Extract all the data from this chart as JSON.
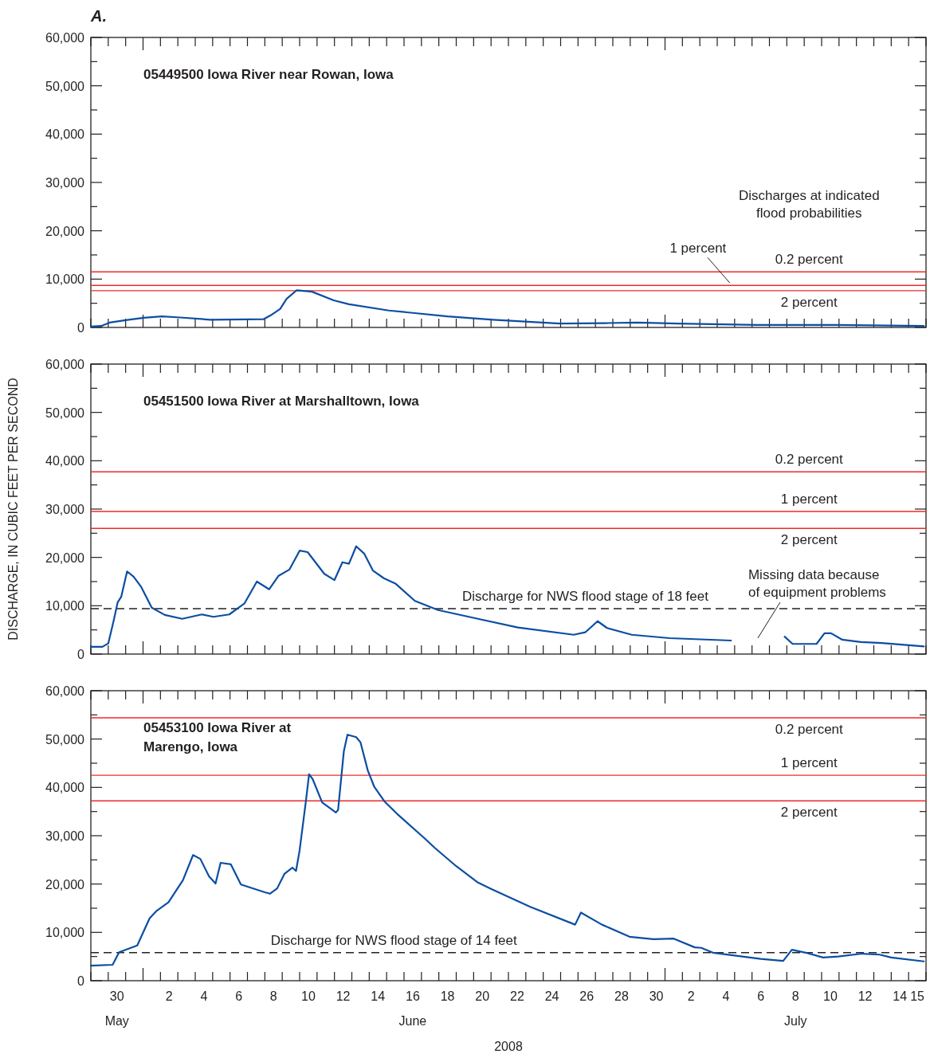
{
  "chart_data": [
    {
      "type": "line",
      "title": "05449500 Iowa River near Rowan, Iowa",
      "tick_labels": "y",
      "xlim": [
        "2008-05-29",
        "2008-07-16"
      ],
      "xticks": [
        {
          "value": "2008-05-29",
          "label": null
        },
        {
          "value": "2008-05-30",
          "label": null
        },
        {
          "value": "2008-05-31",
          "label": null
        },
        {
          "value": "2008-06-01",
          "label": null
        },
        {
          "value": "2008-06-02",
          "label": null
        },
        {
          "value": "2008-06-03",
          "label": null
        },
        {
          "value": "2008-06-04",
          "label": null
        },
        {
          "value": "2008-06-05",
          "label": null
        },
        {
          "value": "2008-06-06",
          "label": null
        },
        {
          "value": "2008-06-07",
          "label": null
        },
        {
          "value": "2008-06-08",
          "label": null
        },
        {
          "value": "2008-06-09",
          "label": null
        },
        {
          "value": "2008-06-10",
          "label": null
        },
        {
          "value": "2008-06-11",
          "label": null
        },
        {
          "value": "2008-06-12",
          "label": null
        },
        {
          "value": "2008-06-13",
          "label": null
        },
        {
          "value": "2008-06-14",
          "label": null
        },
        {
          "value": "2008-06-15",
          "label": null
        },
        {
          "value": "2008-06-16",
          "label": null
        },
        {
          "value": "2008-06-17",
          "label": null
        },
        {
          "value": "2008-06-18",
          "label": null
        },
        {
          "value": "2008-06-19",
          "label": null
        },
        {
          "value": "2008-06-20",
          "label": null
        },
        {
          "value": "2008-06-21",
          "label": null
        },
        {
          "value": "2008-06-22",
          "label": null
        },
        {
          "value": "2008-06-23",
          "label": null
        },
        {
          "value": "2008-06-24",
          "label": null
        },
        {
          "value": "2008-06-25",
          "label": null
        },
        {
          "value": "2008-06-26",
          "label": null
        },
        {
          "value": "2008-06-27",
          "label": null
        },
        {
          "value": "2008-06-28",
          "label": null
        },
        {
          "value": "2008-06-29",
          "label": null
        },
        {
          "value": "2008-06-30",
          "label": null
        },
        {
          "value": "2008-07-01",
          "label": null
        },
        {
          "value": "2008-07-02",
          "label": null
        },
        {
          "value": "2008-07-03",
          "label": null
        },
        {
          "value": "2008-07-04",
          "label": null
        },
        {
          "value": "2008-07-05",
          "label": null
        },
        {
          "value": "2008-07-06",
          "label": null
        },
        {
          "value": "2008-07-07",
          "label": null
        },
        {
          "value": "2008-07-08",
          "label": null
        },
        {
          "value": "2008-07-09",
          "label": null
        },
        {
          "value": "2008-07-10",
          "label": null
        },
        {
          "value": "2008-07-11",
          "label": null
        },
        {
          "value": "2008-07-12",
          "label": null
        },
        {
          "value": "2008-07-13",
          "label": null
        },
        {
          "value": "2008-07-14",
          "label": null
        },
        {
          "value": "2008-07-15",
          "label": null
        },
        {
          "value": "2008-07-16",
          "label": null
        }
      ],
      "ylim": [
        0,
        60000
      ],
      "yticks": [
        {
          "value": 0,
          "label": "0"
        },
        {
          "value": 5000,
          "label": null
        },
        {
          "value": 10000,
          "label": "10,000"
        },
        {
          "value": 15000,
          "label": null
        },
        {
          "value": 20000,
          "label": "20,000"
        },
        {
          "value": 25000,
          "label": null
        },
        {
          "value": 30000,
          "label": "30,000"
        },
        {
          "value": 35000,
          "label": null
        },
        {
          "value": 40000,
          "label": "40,000"
        },
        {
          "value": 45000,
          "label": null
        },
        {
          "value": 50000,
          "label": "50,000"
        },
        {
          "value": 55000,
          "label": null
        },
        {
          "value": 60000,
          "label": "60,000"
        }
      ],
      "ref_lines": [
        {
          "axis": "y",
          "value": 11500,
          "label": "0.2 percent",
          "color": "#ee2a2a",
          "line_style": "solid"
        },
        {
          "axis": "y",
          "value": 8700,
          "label": "1 percent",
          "color": "#ee2a2a",
          "line_style": "solid"
        },
        {
          "axis": "y",
          "value": 7600,
          "label": "2 percent",
          "color": "#ee2a2a",
          "line_style": "solid"
        }
      ],
      "annotations": [
        "A.",
        "Discharges at indicated\nflood probabilities"
      ],
      "series": [
        {
          "color": "#0b4ea2",
          "x": [
            "2008-05-29T00:00",
            "2008-05-29T14:00",
            "2008-05-30T02:00",
            "2008-05-31T00:00",
            "2008-06-01T01:00",
            "2008-06-02T02:00",
            "2008-06-02T23:00",
            "2008-06-04T21:00",
            "2008-06-07T22:00",
            "2008-06-08T08:00",
            "2008-06-08T21:00",
            "2008-06-09T06:00",
            "2008-06-09T20:00",
            "2008-06-10T17:00",
            "2008-06-11T23:00",
            "2008-06-12T20:00",
            "2008-06-15T03:00",
            "2008-06-18T12:00",
            "2008-06-21T03:00",
            "2008-06-24T23:00",
            "2008-06-27T14:00",
            "2008-06-29T10:00",
            "2008-07-01T17:00",
            "2008-07-06T06:00",
            "2008-07-10T20:00",
            "2008-07-15T21:00"
          ],
          "values": [
            200,
            300,
            1000,
            1500,
            2000,
            2300,
            2100,
            1600,
            1700,
            2500,
            3800,
            5900,
            7700,
            7400,
            5600,
            4800,
            3500,
            2300,
            1600,
            800,
            900,
            1000,
            800,
            500,
            500,
            300
          ]
        }
      ]
    },
    {
      "type": "line",
      "title": "05451500 Iowa River at Marshalltown, Iowa",
      "tick_labels": "y",
      "ylabel": "DISCHARGE, IN CUBIC FEET PER SECOND",
      "xlim": [
        "2008-05-29",
        "2008-07-16"
      ],
      "xticks": [
        {
          "value": "2008-05-29",
          "label": null
        },
        {
          "value": "2008-05-30",
          "label": null
        },
        {
          "value": "2008-05-31",
          "label": null
        },
        {
          "value": "2008-06-01",
          "label": null
        },
        {
          "value": "2008-06-02",
          "label": null
        },
        {
          "value": "2008-06-03",
          "label": null
        },
        {
          "value": "2008-06-04",
          "label": null
        },
        {
          "value": "2008-06-05",
          "label": null
        },
        {
          "value": "2008-06-06",
          "label": null
        },
        {
          "value": "2008-06-07",
          "label": null
        },
        {
          "value": "2008-06-08",
          "label": null
        },
        {
          "value": "2008-06-09",
          "label": null
        },
        {
          "value": "2008-06-10",
          "label": null
        },
        {
          "value": "2008-06-11",
          "label": null
        },
        {
          "value": "2008-06-12",
          "label": null
        },
        {
          "value": "2008-06-13",
          "label": null
        },
        {
          "value": "2008-06-14",
          "label": null
        },
        {
          "value": "2008-06-15",
          "label": null
        },
        {
          "value": "2008-06-16",
          "label": null
        },
        {
          "value": "2008-06-17",
          "label": null
        },
        {
          "value": "2008-06-18",
          "label": null
        },
        {
          "value": "2008-06-19",
          "label": null
        },
        {
          "value": "2008-06-20",
          "label": null
        },
        {
          "value": "2008-06-21",
          "label": null
        },
        {
          "value": "2008-06-22",
          "label": null
        },
        {
          "value": "2008-06-23",
          "label": null
        },
        {
          "value": "2008-06-24",
          "label": null
        },
        {
          "value": "2008-06-25",
          "label": null
        },
        {
          "value": "2008-06-26",
          "label": null
        },
        {
          "value": "2008-06-27",
          "label": null
        },
        {
          "value": "2008-06-28",
          "label": null
        },
        {
          "value": "2008-06-29",
          "label": null
        },
        {
          "value": "2008-06-30",
          "label": null
        },
        {
          "value": "2008-07-01",
          "label": null
        },
        {
          "value": "2008-07-02",
          "label": null
        },
        {
          "value": "2008-07-03",
          "label": null
        },
        {
          "value": "2008-07-04",
          "label": null
        },
        {
          "value": "2008-07-05",
          "label": null
        },
        {
          "value": "2008-07-06",
          "label": null
        },
        {
          "value": "2008-07-07",
          "label": null
        },
        {
          "value": "2008-07-08",
          "label": null
        },
        {
          "value": "2008-07-09",
          "label": null
        },
        {
          "value": "2008-07-10",
          "label": null
        },
        {
          "value": "2008-07-11",
          "label": null
        },
        {
          "value": "2008-07-12",
          "label": null
        },
        {
          "value": "2008-07-13",
          "label": null
        },
        {
          "value": "2008-07-14",
          "label": null
        },
        {
          "value": "2008-07-15",
          "label": null
        },
        {
          "value": "2008-07-16",
          "label": null
        }
      ],
      "ylim": [
        0,
        60000
      ],
      "yticks": [
        {
          "value": 0,
          "label": "0"
        },
        {
          "value": 5000,
          "label": null
        },
        {
          "value": 10000,
          "label": "10,000"
        },
        {
          "value": 15000,
          "label": null
        },
        {
          "value": 20000,
          "label": "20,000"
        },
        {
          "value": 25000,
          "label": null
        },
        {
          "value": 30000,
          "label": "30,000"
        },
        {
          "value": 35000,
          "label": null
        },
        {
          "value": 40000,
          "label": "40,000"
        },
        {
          "value": 45000,
          "label": null
        },
        {
          "value": 50000,
          "label": "50,000"
        },
        {
          "value": 55000,
          "label": null
        },
        {
          "value": 60000,
          "label": "60,000"
        }
      ],
      "ref_lines": [
        {
          "axis": "y",
          "value": 37700,
          "label": "0.2 percent",
          "color": "#ee2a2a",
          "line_style": "solid"
        },
        {
          "axis": "y",
          "value": 29500,
          "label": "1 percent",
          "color": "#ee2a2a",
          "line_style": "solid"
        },
        {
          "axis": "y",
          "value": 26000,
          "label": "2 percent",
          "color": "#ee2a2a",
          "line_style": "solid"
        },
        {
          "axis": "y",
          "value": 9400,
          "color": "#222222",
          "line_style": "dashed"
        }
      ],
      "annotations": [
        {
          "text": "Discharge for NWS flood stage of 18 feet",
          "x": "2008-06-26T10:00",
          "y": 9400
        },
        "Missing data because\nof equipment problems"
      ],
      "series": [
        {
          "color": "#0b4ea2",
          "x": [
            "2008-05-29T00:00",
            "2008-05-29T16:00",
            "2008-05-30T00:00",
            "2008-05-30T07:00",
            "2008-05-30T13:00",
            "2008-05-30T18:00",
            "2008-05-31T02:00",
            "2008-05-31T11:00",
            "2008-05-31T21:00",
            "2008-06-01T12:00",
            "2008-06-02T06:00",
            "2008-06-03T06:00",
            "2008-06-04T09:00",
            "2008-06-05T01:00",
            "2008-06-05T23:00",
            "2008-06-06T20:00",
            "2008-06-07T13:00",
            "2008-06-08T06:00",
            "2008-06-08T19:00",
            "2008-06-09T10:00",
            "2008-06-10T00:00",
            "2008-06-10T11:00",
            "2008-06-11T10:00",
            "2008-06-12T00:00",
            "2008-06-12T11:00",
            "2008-06-12T20:00",
            "2008-06-13T06:00",
            "2008-06-13T17:00",
            "2008-06-14T05:00",
            "2008-06-14T20:00",
            "2008-06-15T12:00",
            "2008-06-16T15:00",
            "2008-06-17T23:00",
            "2008-06-20T06:00",
            "2008-06-22T13:00",
            "2008-06-25T18:00",
            "2008-06-26T10:00",
            "2008-06-27T03:00",
            "2008-06-27T16:00",
            "2008-06-29T02:00",
            "2008-07-01T06:00",
            "2008-07-04T19:00",
            "2008-07-06T00:00",
            "2008-07-07T21:00",
            "2008-07-08T08:00",
            "2008-07-09T17:00",
            "2008-07-10T04:00",
            "2008-07-10T13:00",
            "2008-07-11T04:00",
            "2008-07-12T06:00",
            "2008-07-13T11:00",
            "2008-07-15T21:00"
          ],
          "values": [
            1500,
            1500,
            2200,
            6600,
            10700,
            11900,
            17100,
            16000,
            14000,
            9600,
            8100,
            7300,
            8200,
            7700,
            8200,
            10500,
            15000,
            13400,
            16200,
            17500,
            21400,
            21100,
            16600,
            15300,
            19000,
            18700,
            22300,
            20800,
            17300,
            15700,
            14600,
            11000,
            9100,
            7300,
            5500,
            4000,
            4500,
            6800,
            5400,
            4000,
            3300,
            2800,
            null,
            3600,
            2100,
            2100,
            4300,
            4300,
            3000,
            2500,
            2300,
            1600
          ]
        }
      ]
    },
    {
      "type": "line",
      "title": "05453100 Iowa River at\nMarengo, Iowa",
      "xlabel": "2008",
      "xlim": [
        "2008-05-29",
        "2008-07-16"
      ],
      "xticks": [
        {
          "value": "2008-05-29",
          "label": null
        },
        {
          "value": "2008-05-30",
          "label": null
        },
        {
          "value": "2008-05-31",
          "label": null
        },
        {
          "value": "2008-06-01",
          "label": null
        },
        {
          "value": "2008-06-02",
          "label": null
        },
        {
          "value": "2008-06-03",
          "label": null
        },
        {
          "value": "2008-06-04",
          "label": null
        },
        {
          "value": "2008-06-05",
          "label": null
        },
        {
          "value": "2008-06-06",
          "label": null
        },
        {
          "value": "2008-06-07",
          "label": null
        },
        {
          "value": "2008-06-08",
          "label": null
        },
        {
          "value": "2008-06-09",
          "label": null
        },
        {
          "value": "2008-06-10",
          "label": null
        },
        {
          "value": "2008-06-11",
          "label": null
        },
        {
          "value": "2008-06-12",
          "label": null
        },
        {
          "value": "2008-06-13",
          "label": null
        },
        {
          "value": "2008-06-14",
          "label": null
        },
        {
          "value": "2008-06-15",
          "label": null
        },
        {
          "value": "2008-06-16",
          "label": null
        },
        {
          "value": "2008-06-17",
          "label": null
        },
        {
          "value": "2008-06-18",
          "label": null
        },
        {
          "value": "2008-06-19",
          "label": null
        },
        {
          "value": "2008-06-20",
          "label": null
        },
        {
          "value": "2008-06-21",
          "label": null
        },
        {
          "value": "2008-06-22",
          "label": null
        },
        {
          "value": "2008-06-23",
          "label": null
        },
        {
          "value": "2008-06-24",
          "label": null
        },
        {
          "value": "2008-06-25",
          "label": null
        },
        {
          "value": "2008-06-26",
          "label": null
        },
        {
          "value": "2008-06-27",
          "label": null
        },
        {
          "value": "2008-06-28",
          "label": null
        },
        {
          "value": "2008-06-29",
          "label": null
        },
        {
          "value": "2008-06-30",
          "label": null
        },
        {
          "value": "2008-07-01",
          "label": null
        },
        {
          "value": "2008-07-02",
          "label": null
        },
        {
          "value": "2008-07-03",
          "label": null
        },
        {
          "value": "2008-07-04",
          "label": null
        },
        {
          "value": "2008-07-05",
          "label": null
        },
        {
          "value": "2008-07-06",
          "label": null
        },
        {
          "value": "2008-07-07",
          "label": null
        },
        {
          "value": "2008-07-08",
          "label": null
        },
        {
          "value": "2008-07-09",
          "label": null
        },
        {
          "value": "2008-07-10",
          "label": null
        },
        {
          "value": "2008-07-11",
          "label": null
        },
        {
          "value": "2008-07-12",
          "label": null
        },
        {
          "value": "2008-07-13",
          "label": null
        },
        {
          "value": "2008-07-14",
          "label": null
        },
        {
          "value": "2008-07-15",
          "label": null
        },
        {
          "value": "2008-07-16",
          "label": null
        },
        {
          "value": "2008-05-30T12:00",
          "label": "30\nMay"
        },
        {
          "value": "2008-06-02T12:00",
          "label": "2"
        },
        {
          "value": "2008-06-04T12:00",
          "label": "4"
        },
        {
          "value": "2008-06-06T12:00",
          "label": "6"
        },
        {
          "value": "2008-06-08T12:00",
          "label": "8"
        },
        {
          "value": "2008-06-10T12:00",
          "label": "10"
        },
        {
          "value": "2008-06-12T12:00",
          "label": "12"
        },
        {
          "value": "2008-06-14T12:00",
          "label": "14"
        },
        {
          "value": "2008-06-16T12:00",
          "label": "16\nJune"
        },
        {
          "value": "2008-06-18T12:00",
          "label": "18"
        },
        {
          "value": "2008-06-20T12:00",
          "label": "20"
        },
        {
          "value": "2008-06-22T12:00",
          "label": "22"
        },
        {
          "value": "2008-06-24T12:00",
          "label": "24"
        },
        {
          "value": "2008-06-26T12:00",
          "label": "26"
        },
        {
          "value": "2008-06-28T12:00",
          "label": "28"
        },
        {
          "value": "2008-06-30T12:00",
          "label": "30"
        },
        {
          "value": "2008-07-02T12:00",
          "label": "2"
        },
        {
          "value": "2008-07-04T12:00",
          "label": "4"
        },
        {
          "value": "2008-07-06T12:00",
          "label": "6"
        },
        {
          "value": "2008-07-08T12:00",
          "label": "8\nJuly"
        },
        {
          "value": "2008-07-10T12:00",
          "label": "10"
        },
        {
          "value": "2008-07-12T12:00",
          "label": "12"
        },
        {
          "value": "2008-07-14T12:00",
          "label": "14"
        },
        {
          "value": "2008-07-15T12:00",
          "label": "15"
        }
      ],
      "ylim": [
        0,
        60000
      ],
      "yticks": [
        {
          "value": 0,
          "label": "0"
        },
        {
          "value": 5000,
          "label": null
        },
        {
          "value": 10000,
          "label": "10,000"
        },
        {
          "value": 15000,
          "label": null
        },
        {
          "value": 20000,
          "label": "20,000"
        },
        {
          "value": 25000,
          "label": null
        },
        {
          "value": 30000,
          "label": "30,000"
        },
        {
          "value": 35000,
          "label": null
        },
        {
          "value": 40000,
          "label": "40,000"
        },
        {
          "value": 45000,
          "label": null
        },
        {
          "value": 50000,
          "label": "50,000"
        },
        {
          "value": 55000,
          "label": null
        },
        {
          "value": 60000,
          "label": "60,000"
        }
      ],
      "ref_lines": [
        {
          "axis": "y",
          "value": 54400,
          "label": "0.2 percent",
          "color": "#ee2a2a",
          "line_style": "solid"
        },
        {
          "axis": "y",
          "value": 42500,
          "label": "1 percent",
          "color": "#ee2a2a",
          "line_style": "solid"
        },
        {
          "axis": "y",
          "value": 37200,
          "label": "2 percent",
          "color": "#ee2a2a",
          "line_style": "solid"
        },
        {
          "axis": "y",
          "value": 5800,
          "color": "#222222",
          "line_style": "dashed"
        }
      ],
      "annotations": [
        {
          "text": "Discharge for NWS flood stage of 14 feet",
          "x": "2008-06-15T10:00",
          "y": 5800
        }
      ],
      "series": [
        {
          "color": "#0b4ea2",
          "x": [
            "2008-05-29T00:00",
            "2008-05-30T06:00",
            "2008-05-30T15:00",
            "2008-05-31T16:00",
            "2008-06-01T09:00",
            "2008-06-01T19:00",
            "2008-06-02T11:00",
            "2008-06-03T07:00",
            "2008-06-03T21:00",
            "2008-06-04T07:00",
            "2008-06-04T19:00",
            "2008-06-05T04:00",
            "2008-06-05T11:00",
            "2008-06-06T01:00",
            "2008-06-06T15:00",
            "2008-06-08T00:00",
            "2008-06-08T07:00",
            "2008-06-08T17:00",
            "2008-06-09T03:00",
            "2008-06-09T14:00",
            "2008-06-09T19:00",
            "2008-06-10T00:00",
            "2008-06-10T09:00",
            "2008-06-10T13:00",
            "2008-06-10T18:00",
            "2008-06-11T07:00",
            "2008-06-12T02:00",
            "2008-06-12T05:00",
            "2008-06-12T13:00",
            "2008-06-12T18:00",
            "2008-06-13T06:00",
            "2008-06-13T12:00",
            "2008-06-13T22:00",
            "2008-06-14T07:00",
            "2008-06-14T21:00",
            "2008-06-15T16:00",
            "2008-06-17T04:00",
            "2008-06-17T19:00",
            "2008-06-19T00:00",
            "2008-06-20T06:00",
            "2008-06-21T00:00",
            "2008-06-23T06:00",
            "2008-06-25T20:00",
            "2008-06-26T04:00",
            "2008-06-27T09:00",
            "2008-06-28T23:00",
            "2008-06-30T08:00",
            "2008-07-01T12:00",
            "2008-07-02T17:00",
            "2008-07-03T02:00",
            "2008-07-03T18:00",
            "2008-07-06T12:00",
            "2008-07-07T19:00",
            "2008-07-08T07:00",
            "2008-07-09T02:00",
            "2008-07-10T02:00",
            "2008-07-10T23:00",
            "2008-07-12T08:00",
            "2008-07-13T08:00",
            "2008-07-14T00:00",
            "2008-07-15T21:00"
          ],
          "values": [
            3100,
            3300,
            5900,
            7300,
            12900,
            14500,
            16200,
            20800,
            26000,
            25200,
            21600,
            20100,
            24400,
            24100,
            19900,
            18300,
            18000,
            19100,
            22100,
            23400,
            22700,
            27000,
            37600,
            42700,
            41700,
            36900,
            34800,
            35300,
            47500,
            50900,
            50400,
            49300,
            43500,
            40100,
            37100,
            34300,
            29500,
            27400,
            23700,
            20300,
            19000,
            15300,
            11600,
            14100,
            11600,
            9100,
            8600,
            8700,
            6900,
            6800,
            5800,
            4500,
            4100,
            6400,
            5800,
            4800,
            5000,
            5600,
            5400,
            4800,
            4000
          ]
        }
      ]
    }
  ]
}
